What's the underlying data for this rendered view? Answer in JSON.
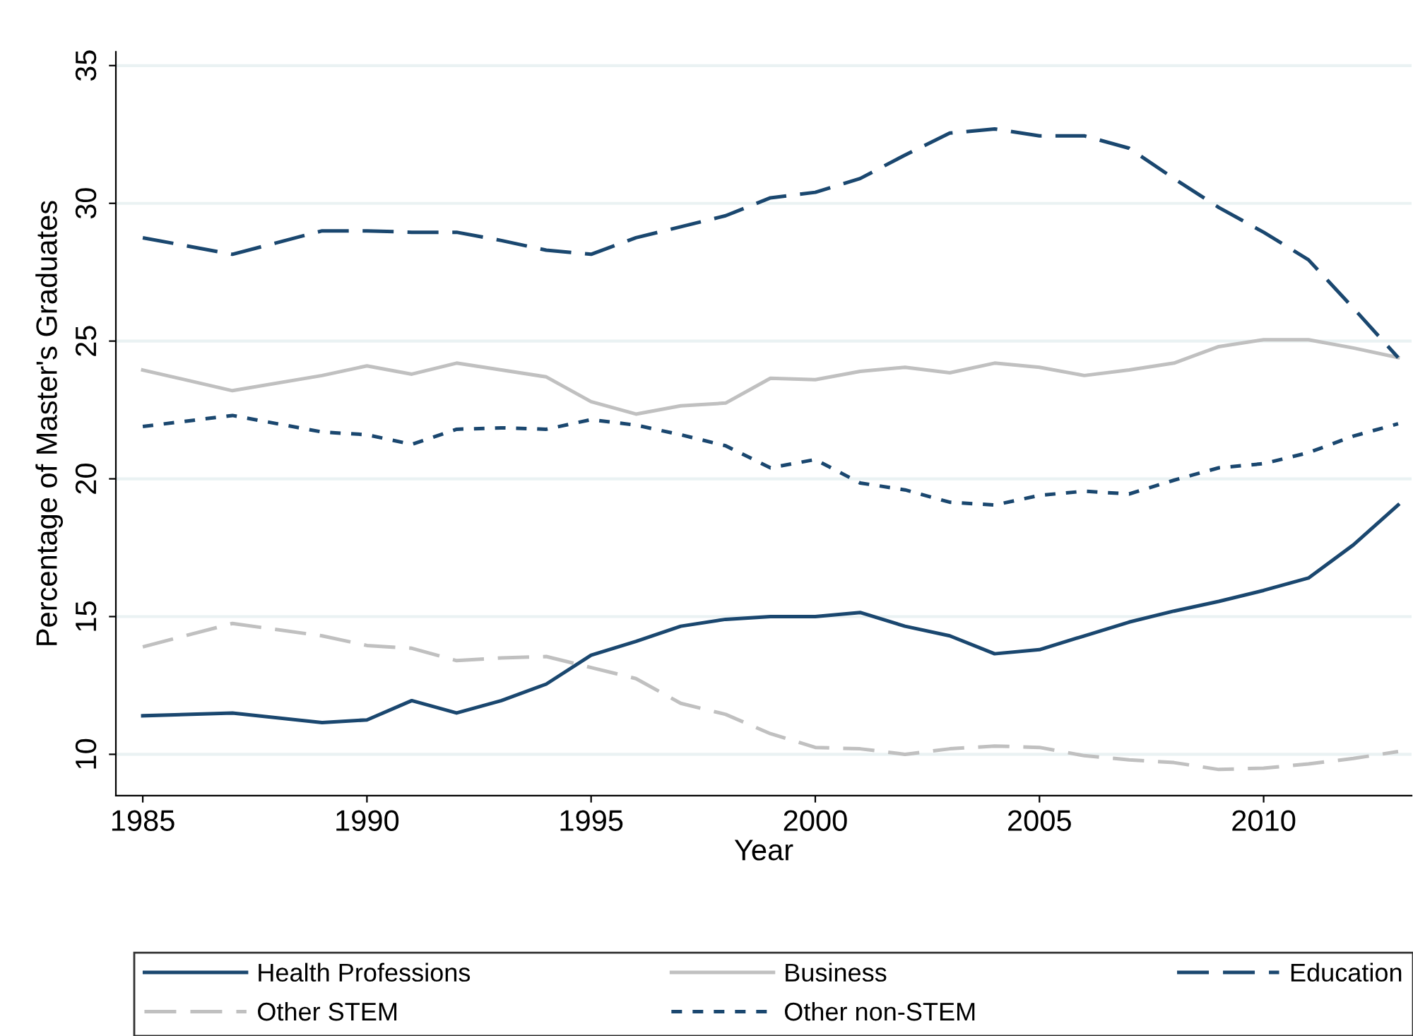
{
  "chart_data": {
    "type": "line",
    "xlabel": "Year",
    "ylabel": "Percentage of Master's Graduates",
    "x": [
      1985,
      1987,
      1989,
      1990,
      1991,
      1992,
      1993,
      1994,
      1995,
      1996,
      1997,
      1998,
      1999,
      2000,
      2001,
      2002,
      2003,
      2004,
      2005,
      2006,
      2007,
      2008,
      2009,
      2010,
      2011,
      2012,
      2013
    ],
    "xlim": [
      1984.4,
      2013.3
    ],
    "xticks": [
      1985,
      1990,
      1995,
      2000,
      2005,
      2010
    ],
    "ylim": [
      8.5,
      35.5
    ],
    "yticks": [
      10,
      15,
      20,
      25,
      30,
      35
    ],
    "grid": "y",
    "legend": "bottom",
    "series": [
      {
        "name": "Health Professions",
        "color": "#1a476f",
        "line_style": "solid",
        "values": [
          11.4,
          11.5,
          11.15,
          11.25,
          11.95,
          11.5,
          11.95,
          12.55,
          13.6,
          14.1,
          14.65,
          14.9,
          15.0,
          15.0,
          15.15,
          14.65,
          14.3,
          13.65,
          13.8,
          14.3,
          14.8,
          15.2,
          15.55,
          15.95,
          16.4,
          17.6,
          19.05
        ]
      },
      {
        "name": "Business",
        "color": "#c0c0c0",
        "line_style": "solid",
        "values": [
          23.95,
          23.2,
          23.75,
          24.1,
          23.8,
          24.2,
          23.95,
          23.7,
          22.8,
          22.35,
          22.65,
          22.75,
          23.65,
          23.6,
          23.9,
          24.05,
          23.85,
          24.2,
          24.05,
          23.75,
          23.95,
          24.2,
          24.8,
          25.05,
          25.05,
          24.75,
          24.4
        ]
      },
      {
        "name": "Education",
        "color": "#1a476f",
        "line_style": "dashed",
        "values": [
          28.75,
          28.15,
          29.0,
          29.0,
          28.95,
          28.95,
          28.65,
          28.3,
          28.15,
          28.75,
          29.15,
          29.55,
          30.2,
          30.4,
          30.9,
          31.75,
          32.55,
          32.7,
          32.45,
          32.45,
          32.0,
          30.9,
          29.85,
          28.95,
          27.95,
          26.2,
          24.4
        ]
      },
      {
        "name": "Other STEM",
        "color": "#c0c0c0",
        "line_style": "dashed",
        "values": [
          13.9,
          14.75,
          14.3,
          13.95,
          13.85,
          13.4,
          13.5,
          13.55,
          13.15,
          12.75,
          11.85,
          11.45,
          10.75,
          10.25,
          10.2,
          10.0,
          10.2,
          10.3,
          10.25,
          9.95,
          9.8,
          9.7,
          9.45,
          9.5,
          9.65,
          9.85,
          10.1
        ]
      },
      {
        "name": "Other non-STEM",
        "color": "#1a476f",
        "line_style": "dotted",
        "values": [
          21.9,
          22.3,
          21.7,
          21.6,
          21.25,
          21.8,
          21.85,
          21.8,
          22.15,
          21.95,
          21.6,
          21.2,
          20.4,
          20.7,
          19.85,
          19.6,
          19.15,
          19.05,
          19.4,
          19.55,
          19.45,
          19.95,
          20.4,
          20.55,
          20.95,
          21.55,
          22.0
        ]
      }
    ]
  }
}
